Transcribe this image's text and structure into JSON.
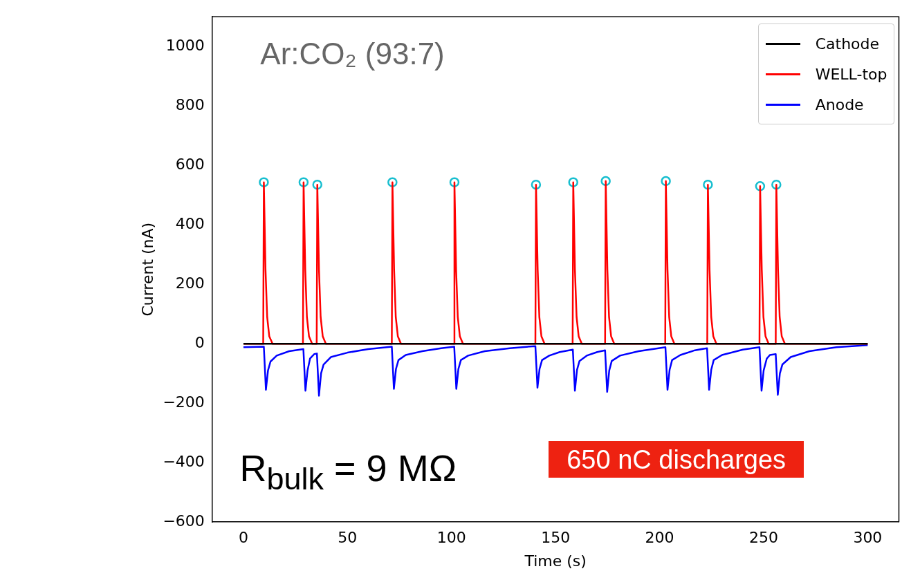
{
  "chart_data": {
    "type": "line",
    "xlabel": "Time (s)",
    "ylabel": "Current (nA)",
    "xlim": [
      -15,
      315
    ],
    "xticks": [
      0,
      50,
      100,
      150,
      200,
      250,
      300
    ],
    "ylim": [
      -600,
      1100
    ],
    "yticks": [
      -600,
      -400,
      -200,
      0,
      200,
      400,
      600,
      800,
      1000
    ],
    "grid": false,
    "legend": "top right",
    "marker": "none",
    "line_style": "solid",
    "annotations": [
      "Ar:CO₂ (93:7)",
      "R$_{bulk}$ = 9 MΩ",
      "650 nC discharges"
    ],
    "series": [
      {
        "name": "Cathode",
        "color": "#000000",
        "x": [
          0,
          300
        ],
        "values": [
          0,
          0
        ]
      },
      {
        "name": "WELL-top",
        "color": "#ff0000",
        "x": [
          0,
          9.5,
          9.8,
          10.6,
          11.4,
          12.4,
          14,
          28.6,
          28.9,
          29.7,
          30.5,
          31.5,
          33,
          35.2,
          35.5,
          36.3,
          37.1,
          38.1,
          39.6,
          71.3,
          71.6,
          72.4,
          73.2,
          74.2,
          75.7,
          101.1,
          101.4,
          102.2,
          103,
          104,
          105.5,
          140.3,
          140.6,
          141.4,
          142.2,
          143.2,
          144.7,
          158.2,
          158.5,
          159.3,
          160.1,
          161.1,
          162.6,
          173.8,
          174.1,
          174.9,
          175.7,
          176.7,
          178.2,
          202.7,
          203,
          203.8,
          204.6,
          205.6,
          207.1,
          222.9,
          223.2,
          224,
          224.8,
          225.8,
          227.3,
          248,
          248.3,
          249.1,
          249.9,
          250.9,
          252.4,
          255.8,
          256.1,
          256.9,
          257.7,
          258.7,
          260.2,
          300
        ],
        "values": [
          0,
          0,
          543,
          250,
          90,
          25,
          0,
          0,
          543,
          250,
          90,
          25,
          0,
          0,
          535,
          250,
          90,
          25,
          0,
          0,
          543,
          250,
          90,
          25,
          0,
          0,
          543,
          250,
          90,
          25,
          0,
          0,
          535,
          250,
          90,
          25,
          0,
          0,
          543,
          250,
          90,
          25,
          0,
          0,
          547,
          250,
          90,
          25,
          0,
          0,
          547,
          250,
          90,
          25,
          0,
          0,
          535,
          250,
          90,
          25,
          0,
          0,
          530,
          250,
          90,
          25,
          0,
          0,
          535,
          250,
          90,
          25,
          0,
          0
        ]
      },
      {
        "name": "Anode",
        "color": "#0000ff",
        "x": [
          0,
          9.8,
          10.8,
          11.8,
          13,
          16,
          22,
          28.8,
          29.8,
          30.8,
          32,
          34,
          35.3,
          36.3,
          37.3,
          38.5,
          42,
          50,
          60,
          71.3,
          72.3,
          73.3,
          74.5,
          78,
          86,
          95,
          101.3,
          102.3,
          103.3,
          104.5,
          108,
          116,
          128,
          140.3,
          141.3,
          142.3,
          143.5,
          147,
          152,
          158.3,
          159.3,
          160.3,
          161.5,
          165,
          170,
          173.8,
          174.8,
          175.8,
          177,
          181,
          190,
          202.8,
          203.8,
          204.8,
          206,
          210,
          217,
          222.8,
          223.8,
          224.8,
          226,
          230,
          240,
          248,
          249,
          250,
          251.5,
          253,
          255.8,
          256.8,
          257.8,
          259,
          263,
          272,
          285,
          300
        ],
        "values": [
          -12,
          -10,
          -155,
          -90,
          -60,
          -40,
          -25,
          -18,
          -158,
          -90,
          -50,
          -35,
          -33,
          -175,
          -100,
          -70,
          -45,
          -30,
          -18,
          -10,
          -152,
          -85,
          -55,
          -38,
          -25,
          -15,
          -10,
          -152,
          -85,
          -55,
          -40,
          -25,
          -15,
          -8,
          -148,
          -85,
          -55,
          -40,
          -28,
          -20,
          -158,
          -88,
          -58,
          -40,
          -28,
          -22,
          -162,
          -90,
          -58,
          -40,
          -25,
          -12,
          -155,
          -88,
          -55,
          -38,
          -22,
          -15,
          -155,
          -88,
          -55,
          -38,
          -20,
          -12,
          -158,
          -90,
          -50,
          -38,
          -35,
          -172,
          -100,
          -70,
          -45,
          -25,
          -12,
          -5
        ]
      },
      {
        "type": "scatter",
        "color": "#17becf",
        "marker": "circle",
        "x": [
          9.8,
          28.9,
          35.5,
          71.6,
          101.4,
          140.6,
          158.5,
          174.1,
          203,
          223.2,
          248.3,
          256.1
        ],
        "values": [
          543,
          543,
          535,
          543,
          543,
          535,
          543,
          547,
          547,
          535,
          530,
          535
        ]
      }
    ]
  }
}
